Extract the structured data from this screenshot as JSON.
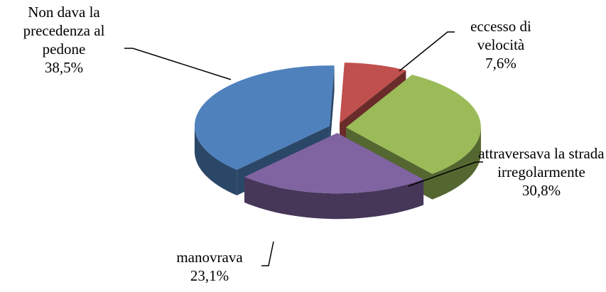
{
  "chart_data": {
    "type": "pie3d",
    "categories": [
      "eccesso di velocità",
      "attraversava la strada irregolarmente",
      "manovrava",
      "Non dava la precedenza al pedone"
    ],
    "values": [
      7.6,
      30.8,
      23.1,
      38.5
    ],
    "value_labels": [
      "7,6%",
      "30,8%",
      "23,1%",
      "38,5%"
    ],
    "colors": [
      "#c0504d",
      "#9bbb59",
      "#8064a2",
      "#4f81bd"
    ]
  }
}
